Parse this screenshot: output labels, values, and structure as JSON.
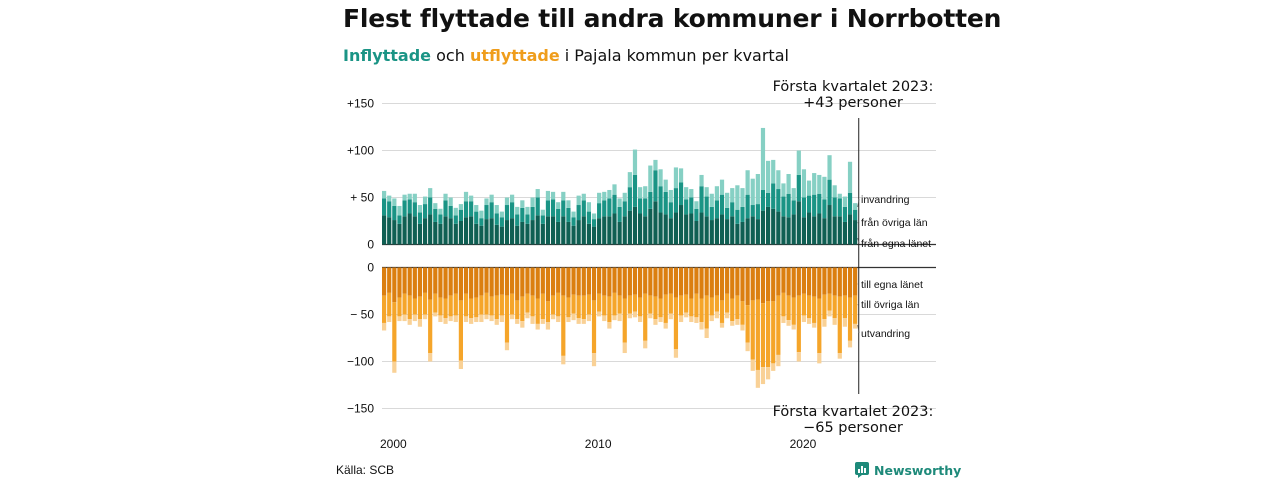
{
  "header": {
    "title": "Flest flyttade till andra kommuner i Norrbotten",
    "subtitle_in": "Inflyttade",
    "subtitle_mid": " och ",
    "subtitle_out": "utflyttade",
    "subtitle_rest": " i Pajala kommun per kvartal"
  },
  "footer": {
    "source": "Källa: SCB",
    "brand": "Newsworthy"
  },
  "colors": {
    "in_egna": "#0f5f53",
    "in_ovriga": "#1a9485",
    "in_inv": "#86d0c4",
    "out_egna": "#db7f10",
    "out_ovriga": "#f5a52a",
    "out_utv": "#f9d196",
    "grid": "#d9d9d9",
    "axis": "#333333"
  },
  "chart_data": {
    "type": "bar",
    "stacked": true,
    "x_start": "2000 Q1",
    "quarters": 93,
    "xticks": [
      "2000",
      "2010",
      "2020"
    ],
    "top_panel": {
      "ylim": [
        0,
        150
      ],
      "yticks": [
        "+150",
        "+100",
        "+ 50",
        "0"
      ],
      "ytick_values": [
        150,
        100,
        50,
        0
      ],
      "annotation": [
        "Första kvartalet 2023:",
        "+43 personer"
      ],
      "series": [
        {
          "name": "från egna länet",
          "values": [
            31,
            29,
            26,
            22,
            30,
            33,
            30,
            22,
            28,
            32,
            24,
            22,
            30,
            28,
            22,
            25,
            29,
            30,
            22,
            20,
            27,
            28,
            21,
            19,
            26,
            28,
            20,
            24,
            22,
            26,
            31,
            22,
            30,
            30,
            24,
            30,
            24,
            20,
            26,
            30,
            22,
            19,
            28,
            30,
            30,
            33,
            24,
            30,
            36,
            40,
            33,
            30,
            38,
            46,
            34,
            32,
            28,
            34,
            42,
            32,
            33,
            25,
            34,
            30,
            26,
            28,
            32,
            27,
            30,
            22,
            24,
            28,
            30,
            27,
            36,
            40,
            38,
            35,
            30,
            29,
            32,
            46,
            29,
            34,
            30,
            33,
            28,
            42,
            30,
            30,
            24,
            32,
            26
          ]
        },
        {
          "name": "från övriga län",
          "values": [
            18,
            17,
            15,
            9,
            17,
            15,
            15,
            12,
            15,
            18,
            14,
            10,
            17,
            13,
            9,
            12,
            17,
            16,
            13,
            8,
            15,
            17,
            12,
            10,
            16,
            17,
            12,
            15,
            10,
            14,
            19,
            9,
            17,
            18,
            14,
            17,
            15,
            9,
            16,
            17,
            13,
            8,
            16,
            17,
            19,
            20,
            16,
            16,
            25,
            34,
            16,
            19,
            18,
            33,
            28,
            24,
            17,
            26,
            24,
            16,
            17,
            13,
            28,
            21,
            14,
            19,
            21,
            12,
            15,
            15,
            16,
            25,
            12,
            16,
            22,
            15,
            27,
            24,
            21,
            25,
            15,
            28,
            21,
            18,
            23,
            21,
            20,
            27,
            20,
            19,
            16,
            23,
            11
          ]
        },
        {
          "name": "invandring",
          "values": [
            8,
            6,
            8,
            10,
            6,
            6,
            9,
            8,
            8,
            10,
            6,
            6,
            7,
            9,
            8,
            6,
            10,
            6,
            7,
            8,
            7,
            8,
            9,
            6,
            8,
            8,
            8,
            8,
            8,
            10,
            9,
            6,
            10,
            8,
            7,
            9,
            8,
            6,
            10,
            7,
            10,
            6,
            11,
            9,
            9,
            11,
            9,
            9,
            16,
            27,
            12,
            13,
            28,
            11,
            18,
            13,
            13,
            22,
            15,
            13,
            9,
            8,
            12,
            10,
            14,
            15,
            16,
            16,
            15,
            26,
            20,
            26,
            28,
            32,
            66,
            34,
            25,
            20,
            14,
            21,
            13,
            26,
            30,
            16,
            23,
            20,
            24,
            26,
            13,
            5,
            11,
            33,
            7
          ]
        }
      ]
    },
    "bottom_panel": {
      "ylim": [
        -150,
        0
      ],
      "yticks": [
        "0",
        "− 50",
        "−100",
        "−150"
      ],
      "ytick_values": [
        0,
        -50,
        -100,
        -150
      ],
      "annotation": [
        "Första kvartalet 2023:",
        "−65 personer"
      ],
      "series": [
        {
          "name": "till egna länet",
          "values": [
            -30,
            -27,
            -37,
            -32,
            -28,
            -30,
            -33,
            -31,
            -27,
            -34,
            -28,
            -32,
            -33,
            -30,
            -28,
            -35,
            -28,
            -33,
            -32,
            -30,
            -27,
            -31,
            -30,
            -29,
            -30,
            -28,
            -35,
            -31,
            -28,
            -30,
            -33,
            -28,
            -36,
            -30,
            -27,
            -30,
            -32,
            -29,
            -30,
            -30,
            -29,
            -35,
            -28,
            -30,
            -31,
            -27,
            -30,
            -33,
            -30,
            -29,
            -32,
            -28,
            -30,
            -31,
            -33,
            -29,
            -28,
            -32,
            -30,
            -29,
            -33,
            -28,
            -33,
            -30,
            -32,
            -30,
            -35,
            -28,
            -33,
            -30,
            -36,
            -40,
            -35,
            -34,
            -38,
            -36,
            -36,
            -30,
            -27,
            -30,
            -32,
            -30,
            -28,
            -30,
            -31,
            -33,
            -29,
            -28,
            -30,
            -31,
            -30,
            -32,
            -30
          ]
        },
        {
          "name": "till övriga län",
          "values": [
            -29,
            -25,
            -63,
            -20,
            -22,
            -25,
            -17,
            -24,
            -23,
            -57,
            -20,
            -19,
            -21,
            -22,
            -23,
            -64,
            -24,
            -21,
            -21,
            -20,
            -23,
            -20,
            -25,
            -22,
            -50,
            -22,
            -20,
            -26,
            -20,
            -22,
            -27,
            -27,
            -22,
            -20,
            -25,
            -64,
            -21,
            -20,
            -24,
            -25,
            -21,
            -56,
            -19,
            -21,
            -27,
            -24,
            -19,
            -47,
            -19,
            -18,
            -20,
            -50,
            -19,
            -24,
            -20,
            -30,
            -21,
            -55,
            -21,
            -19,
            -19,
            -25,
            -25,
            -35,
            -19,
            -17,
            -24,
            -20,
            -24,
            -25,
            -25,
            -40,
            -63,
            -75,
            -68,
            -70,
            -66,
            -63,
            -25,
            -26,
            -29,
            -60,
            -23,
            -24,
            -28,
            -58,
            -26,
            -18,
            -24,
            -60,
            -24,
            -46,
            -30
          ]
        },
        {
          "name": "utvandring",
          "values": [
            -8,
            -6,
            -12,
            -5,
            -7,
            -6,
            -7,
            -8,
            -5,
            -9,
            -4,
            -7,
            -6,
            -5,
            -7,
            -9,
            -6,
            -6,
            -5,
            -8,
            -5,
            -6,
            -6,
            -7,
            -8,
            -5,
            -5,
            -7,
            -6,
            -8,
            -6,
            -5,
            -8,
            -5,
            -6,
            -9,
            -5,
            -7,
            -6,
            -5,
            -7,
            -14,
            -5,
            -6,
            -7,
            -5,
            -8,
            -11,
            -5,
            -6,
            -6,
            -8,
            -5,
            -6,
            -5,
            -6,
            -6,
            -9,
            -7,
            -5,
            -6,
            -6,
            -8,
            -10,
            -6,
            -7,
            -5,
            -6,
            -5,
            -6,
            -6,
            -9,
            -12,
            -19,
            -18,
            -13,
            -8,
            -12,
            -7,
            -6,
            -5,
            -10,
            -7,
            -6,
            -5,
            -11,
            -8,
            -6,
            -7,
            -6,
            -9,
            -7,
            -5
          ]
        }
      ]
    }
  }
}
